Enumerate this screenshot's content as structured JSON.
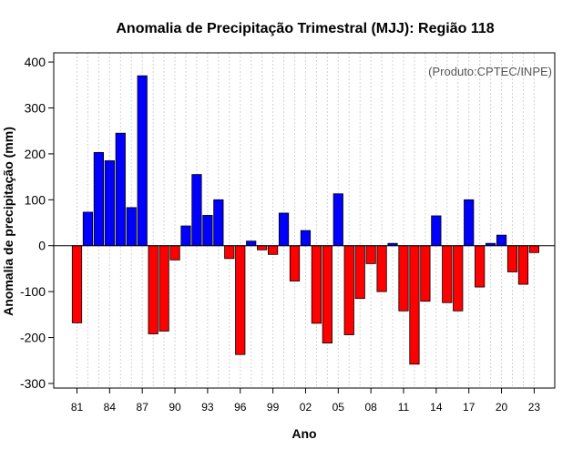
{
  "chart_data": {
    "type": "bar",
    "title": "Anomalia de Precipitação Trimestral (MJJ): Região 118",
    "xlabel": "Ano",
    "ylabel": "Anomalia de precipitação (mm)",
    "annotation": "(Produto:CPTEC/INPE)",
    "ylim": [
      -310,
      420
    ],
    "yticks": [
      -300,
      -200,
      -100,
      0,
      100,
      200,
      300,
      400
    ],
    "categories": [
      "1981",
      "1982",
      "1983",
      "1984",
      "1985",
      "1986",
      "1987",
      "1988",
      "1989",
      "1990",
      "1991",
      "1992",
      "1993",
      "1994",
      "1995",
      "1996",
      "1997",
      "1998",
      "1999",
      "2000",
      "2001",
      "2002",
      "2003",
      "2004",
      "2005",
      "2006",
      "2007",
      "2008",
      "2009",
      "2010",
      "2011",
      "2012",
      "2013",
      "2014",
      "2015",
      "2016",
      "2017",
      "2018",
      "2019",
      "2020",
      "2021",
      "2022",
      "2023"
    ],
    "values": [
      -168,
      73,
      203,
      185,
      245,
      83,
      370,
      -192,
      -186,
      -31,
      43,
      155,
      66,
      100,
      -28,
      -237,
      10,
      -9,
      -19,
      71,
      -77,
      33,
      -169,
      -212,
      113,
      -194,
      -115,
      -39,
      -100,
      5,
      -142,
      -258,
      -121,
      65,
      -124,
      -142,
      100,
      -90,
      5,
      23,
      -57,
      -84,
      -15
    ],
    "xtick_labels": [
      "81",
      "84",
      "87",
      "90",
      "93",
      "96",
      "99",
      "02",
      "05",
      "08",
      "11",
      "14",
      "17",
      "20",
      "23"
    ],
    "xtick_every": 3,
    "colors": {
      "positive": "#0000ff",
      "negative": "#ff0000",
      "grid": "#d3d3d3",
      "zero_line": "#000000"
    },
    "grid": true
  }
}
